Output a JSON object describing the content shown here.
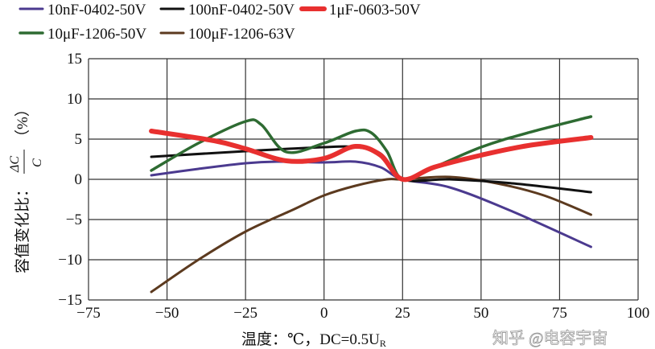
{
  "chart_data": {
    "type": "line",
    "title": "",
    "xlabel": "温度：℃，DC=0.5U",
    "xlabel_sub": "R",
    "ylabel": "容值变化比：",
    "ylabel_frac_num": "ΔC",
    "ylabel_frac_den": "C",
    "ylabel_unit": "（%）",
    "xlim": [
      -75,
      100
    ],
    "ylim": [
      -15,
      15
    ],
    "xticks": [
      -75,
      -50,
      -25,
      0,
      25,
      50,
      75,
      100
    ],
    "yticks": [
      -15,
      -10,
      -5,
      0,
      5,
      10,
      15
    ],
    "grid": true,
    "legend_placement": "top",
    "series": [
      {
        "name": "10nF-0402-50V",
        "color": "#4b3a8f",
        "width": 3,
        "x": [
          -55,
          -40,
          -25,
          -15,
          0,
          10,
          18,
          25,
          40,
          60,
          85
        ],
        "y": [
          0.5,
          1.3,
          2.0,
          2.2,
          2.1,
          2.2,
          1.5,
          0,
          -1,
          -4,
          -8.4
        ]
      },
      {
        "name": "100nF-0402-50V",
        "color": "#111111",
        "width": 3,
        "x": [
          -55,
          -25,
          0,
          10,
          18,
          25,
          40,
          60,
          85
        ],
        "y": [
          2.8,
          3.5,
          4.0,
          4.0,
          3.2,
          0,
          0,
          -0.5,
          -1.6
        ]
      },
      {
        "name": "1μF-0603-50V",
        "color": "#e8302f",
        "width": 6,
        "x": [
          -55,
          -35,
          -25,
          -12,
          0,
          10,
          18,
          25,
          35,
          50,
          65,
          85
        ],
        "y": [
          6.0,
          4.8,
          3.8,
          2.3,
          2.6,
          4.1,
          3.0,
          0,
          1.5,
          3.0,
          4.2,
          5.2
        ]
      },
      {
        "name": "10μF-1206-50V",
        "color": "#2e6b32",
        "width": 3.5,
        "x": [
          -55,
          -40,
          -25,
          -20,
          -12,
          0,
          10,
          15,
          20,
          25,
          35,
          50,
          65,
          85
        ],
        "y": [
          1.1,
          4.5,
          7.2,
          6.8,
          3.4,
          4.5,
          6.0,
          5.8,
          3.5,
          0,
          1.5,
          4.0,
          5.8,
          7.8
        ]
      },
      {
        "name": "100μF-1206-63V",
        "color": "#5c3a1f",
        "width": 3,
        "x": [
          -55,
          -40,
          -25,
          -10,
          0,
          10,
          20,
          25,
          40,
          55,
          70,
          85
        ],
        "y": [
          -14,
          -10,
          -6.5,
          -3.8,
          -2,
          -0.8,
          0,
          0,
          0.3,
          -0.5,
          -2,
          -4.4
        ]
      }
    ]
  },
  "watermark": "知乎 @电容宇宙"
}
